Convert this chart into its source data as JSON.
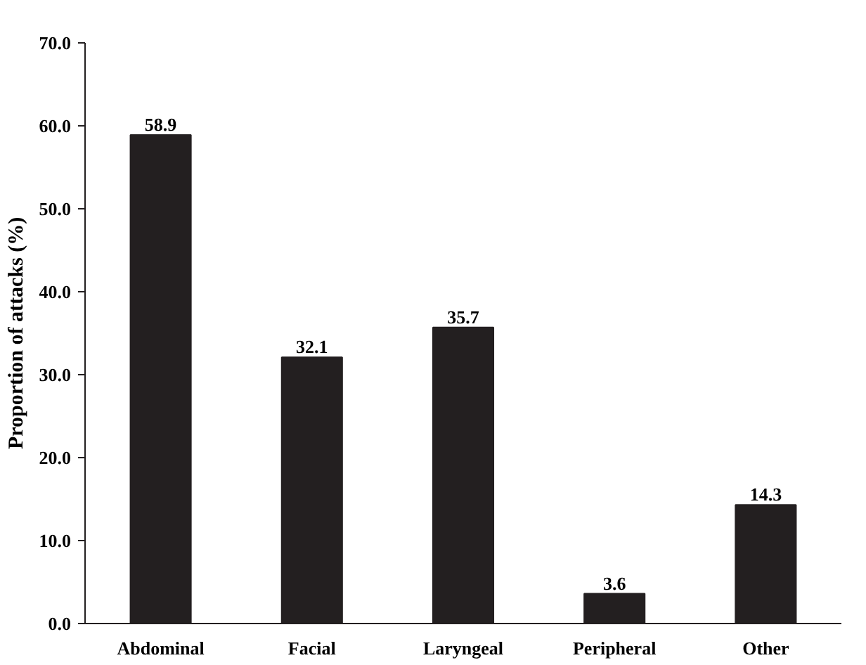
{
  "chart_data": {
    "type": "bar",
    "ylabel": "Proportion of attacks (%)",
    "categories": [
      "Abdominal",
      "Facial",
      "Laryngeal",
      "Peripheral",
      "Other"
    ],
    "values": [
      58.9,
      32.1,
      35.7,
      3.6,
      14.3
    ],
    "color": "#231f20",
    "ylim": [
      0,
      70
    ],
    "yticks": [
      {
        "value": 0,
        "label": "0.0"
      },
      {
        "value": 10,
        "label": "10.0"
      },
      {
        "value": 20,
        "label": "20.0"
      },
      {
        "value": 30,
        "label": "30.0"
      },
      {
        "value": 40,
        "label": "40.0"
      },
      {
        "value": 50,
        "label": "50.0"
      },
      {
        "value": 60,
        "label": "60.0"
      },
      {
        "value": 70,
        "label": "70.0"
      }
    ],
    "data_labels": true,
    "grid": false
  }
}
